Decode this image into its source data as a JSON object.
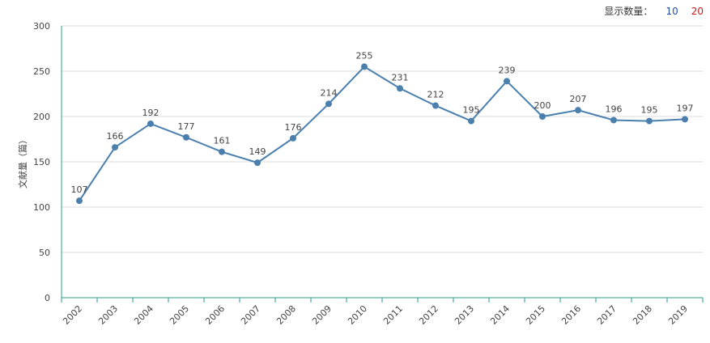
{
  "controls": {
    "display_count_label": "显示数量：",
    "options": [
      "10",
      "20"
    ]
  },
  "chart_data": {
    "type": "line",
    "title": "",
    "xlabel": "",
    "ylabel": "文献量（篇）",
    "ylim": [
      0,
      300
    ],
    "yticks": [
      0,
      50,
      100,
      150,
      200,
      250,
      300
    ],
    "categories": [
      "2002",
      "2003",
      "2004",
      "2005",
      "2006",
      "2007",
      "2008",
      "2009",
      "2010",
      "2011",
      "2012",
      "2013",
      "2014",
      "2015",
      "2016",
      "2017",
      "2018",
      "2019"
    ],
    "values": [
      107,
      166,
      192,
      177,
      161,
      149,
      176,
      214,
      255,
      231,
      212,
      195,
      239,
      200,
      207,
      196,
      195,
      197
    ],
    "line_color": "#4a7fae",
    "axis_color": "#2a9d8f",
    "grid": true
  }
}
